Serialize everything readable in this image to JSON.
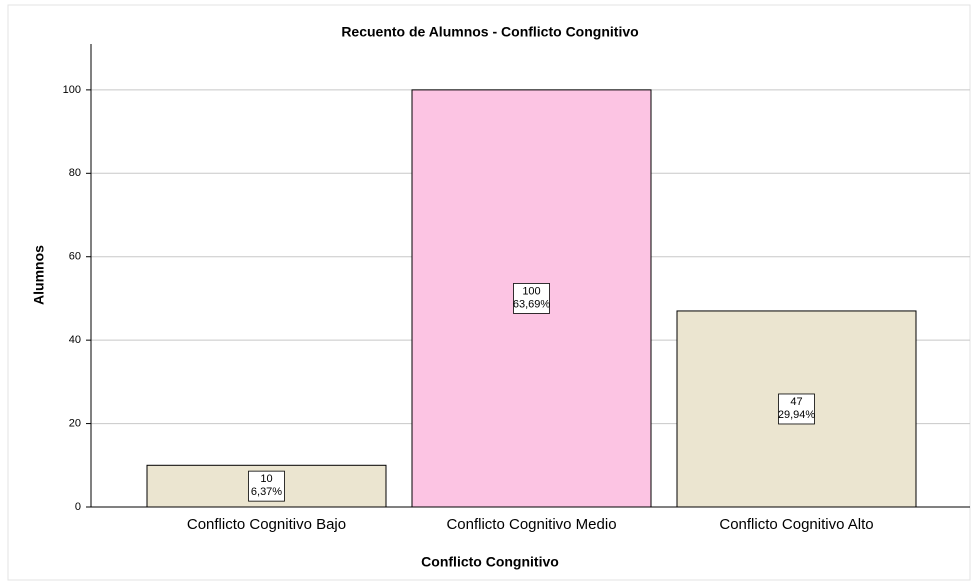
{
  "chart_data": {
    "type": "bar",
    "title": "Recuento de Alumnos - Conflicto Congnitivo",
    "x_label": "Conflicto Congnitivo",
    "y_label": "Alumnos",
    "categories": [
      "Conflicto Cognitivo Bajo",
      "Conflicto Cognitivo Medio",
      "Conflicto Cognitivo Alto"
    ],
    "values": [
      10,
      100,
      47
    ],
    "percent_labels": [
      "6,37%",
      "63,69%",
      "29,94%"
    ],
    "colors": [
      "#ebe5d0",
      "#fcc4e3",
      "#ebe5d0"
    ],
    "ylim": [
      0,
      111
    ],
    "yticks": [
      0,
      20,
      40,
      60,
      80,
      100
    ],
    "grid": true
  }
}
